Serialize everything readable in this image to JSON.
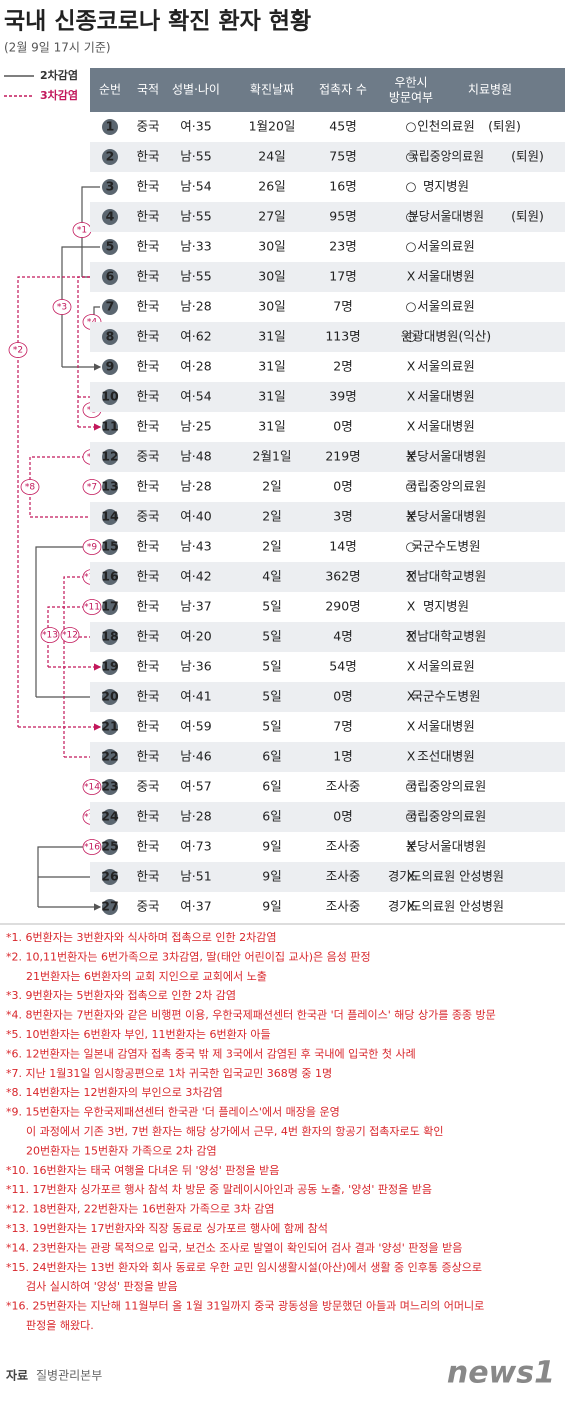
{
  "title": "국내 신종코로나 확진 환자 현황",
  "subtitle": "(2월 9일 17시 기준)",
  "legend": [
    "2차감염",
    "3차감염"
  ],
  "headers": [
    "순번",
    "국적",
    "성별·나이",
    "확진날짜",
    "접촉자 수",
    [
      "우한시",
      "방문여부"
    ],
    "치료병원"
  ],
  "rows": [
    {
      "cells": [
        "1",
        "중국",
        "여·35",
        "1월20일",
        "45명",
        "○",
        "인천의료원"
      ],
      "note": "(퇴원)"
    },
    {
      "cells": [
        "2",
        "한국",
        "남·55",
        "24일",
        "75명",
        "○",
        "국립중앙의료원"
      ],
      "note": "(퇴원)"
    },
    {
      "cells": [
        "3",
        "한국",
        "남·54",
        "26일",
        "16명",
        "○",
        "명지병원"
      ]
    },
    {
      "cells": [
        "4",
        "한국",
        "남·55",
        "27일",
        "95명",
        "○",
        "분당서울대병원"
      ],
      "note": "(퇴원)"
    },
    {
      "cells": [
        "5",
        "한국",
        "남·33",
        "30일",
        "23명",
        "○",
        "서울의료원"
      ]
    },
    {
      "cells": [
        "6",
        "한국",
        "남·55",
        "30일",
        "17명",
        "X",
        "서울대병원"
      ]
    },
    {
      "cells": [
        "7",
        "한국",
        "남·28",
        "30일",
        "7명",
        "○",
        "서울의료원"
      ]
    },
    {
      "cells": [
        "8",
        "한국",
        "여·62",
        "31일",
        "113명",
        "○",
        "원광대병원(익산)"
      ]
    },
    {
      "cells": [
        "9",
        "한국",
        "여·28",
        "31일",
        "2명",
        "X",
        "서울의료원"
      ]
    },
    {
      "cells": [
        "10",
        "한국",
        "여·54",
        "31일",
        "39명",
        "X",
        "서울대병원"
      ]
    },
    {
      "cells": [
        "11",
        "한국",
        "남·25",
        "31일",
        "0명",
        "X",
        "서울대병원"
      ]
    },
    {
      "cells": [
        "12",
        "중국",
        "남·48",
        "2월1일",
        "219명",
        "X",
        "분당서울대병원"
      ]
    },
    {
      "cells": [
        "13",
        "한국",
        "남·28",
        "2일",
        "0명",
        "○",
        "국립중앙의료원"
      ]
    },
    {
      "cells": [
        "14",
        "중국",
        "여·40",
        "2일",
        "3명",
        "X",
        "분당서울대병원"
      ]
    },
    {
      "cells": [
        "15",
        "한국",
        "남·43",
        "2일",
        "14명",
        "○",
        "국군수도병원"
      ]
    },
    {
      "cells": [
        "16",
        "한국",
        "여·42",
        "4일",
        "362명",
        "X",
        "전남대학교병원"
      ]
    },
    {
      "cells": [
        "17",
        "한국",
        "남·37",
        "5일",
        "290명",
        "X",
        "명지병원"
      ]
    },
    {
      "cells": [
        "18",
        "한국",
        "여·20",
        "5일",
        "4명",
        "X",
        "전남대학교병원"
      ]
    },
    {
      "cells": [
        "19",
        "한국",
        "남·36",
        "5일",
        "54명",
        "X",
        "서울의료원"
      ]
    },
    {
      "cells": [
        "20",
        "한국",
        "여·41",
        "5일",
        "0명",
        "X",
        "국군수도병원"
      ]
    },
    {
      "cells": [
        "21",
        "한국",
        "여·59",
        "5일",
        "7명",
        "X",
        "서울대병원"
      ]
    },
    {
      "cells": [
        "22",
        "한국",
        "남·46",
        "6일",
        "1명",
        "X",
        "조선대병원"
      ]
    },
    {
      "cells": [
        "23",
        "중국",
        "여·57",
        "6일",
        "조사중",
        "○",
        "국립중앙의료원"
      ]
    },
    {
      "cells": [
        "24",
        "한국",
        "남·28",
        "6일",
        "0명",
        "○",
        "국립중앙의료원"
      ]
    },
    {
      "cells": [
        "25",
        "한국",
        "여·73",
        "9일",
        "조사중",
        "X",
        "분당서울대병원"
      ]
    },
    {
      "cells": [
        "26",
        "한국",
        "남·51",
        "9일",
        "조사중",
        "X",
        "경기도의료원 안성병원"
      ]
    },
    {
      "cells": [
        "27",
        "중국",
        "여·37",
        "9일",
        "조사중",
        "X",
        "경기도의료원 안성병원"
      ]
    }
  ],
  "markers": [
    "*1",
    "*2",
    "*3",
    "*4",
    "*5",
    "*6",
    "*7",
    "*8",
    "*9",
    "*10",
    "*11",
    "*12",
    "*13",
    "*14",
    "*15",
    "*16"
  ],
  "footnotes": [
    [
      "*1. 6번환자는 3번환자와 식사하며 접촉으로 인한 2차감염"
    ],
    [
      "*2. 10,11번환자는 6번가족으로 3차감염, 딸(태안 어린이집 교사)은 음성 판정",
      "21번환자는 6번환자의 교회 지인으로 교회에서 노출"
    ],
    [
      "*3. 9번환자는 5번환자와 접촉으로 인한 2차 감염"
    ],
    [
      "*4. 8번환자는 7번환자와 같은 비행편 이용, 우한국제패션센터 한국관 '더 플레이스' 해당 상가를 종종 방문"
    ],
    [
      "*5. 10번환자는 6번환자 부인, 11번환자는 6번환자 아들"
    ],
    [
      "*6. 12번환자는 일본내 감염자 접촉 중국 밖 제 3국에서 감염된 후 국내에 입국한 첫 사례"
    ],
    [
      "*7. 지난 1월31일 임시항공편으로 1차 귀국한 입국교민 368명 중 1명"
    ],
    [
      "*8. 14번환자는 12번환자의 부인으로 3차감염"
    ],
    [
      "*9. 15번환자는 우한국제패션센터 한국관 '더 플레이스'에서 매장을 운영",
      "이 과정에서 기존 3번, 7번 환자는 해당 상가에서 근무, 4번 환자의 항공기 접촉자로도 확인",
      "20번환자는 15번환자 가족으로 2차 감염"
    ],
    [
      "*10. 16번환자는 태국 여행을 다녀온 뒤 '양성' 판정을 받음"
    ],
    [
      "*11. 17번환자 싱가포르 행사 참석 차 방문 중 말레이시아인과 공동 노출, '양성' 판정을 받음"
    ],
    [
      "*12. 18번환자, 22번환자는 16번환자 가족으로 3차 감염"
    ],
    [
      "*13. 19번환자는 17번환자와 직장 동료로 싱가포르 행사에 함께 참석"
    ],
    [
      "*14. 23번환자는 관광 목적으로 입국, 보건소 조사로 발열이 확인되어 검사 결과 '양성' 판정을 받음"
    ],
    [
      "*15. 24번환자는 13번 환자와 회사 동료로 우한 교민 임시생활시설(아산)에서 생활 중 인후통 증상으로",
      "검사 실시하여 '양성' 판정을 받음"
    ],
    [
      "*16. 25번환자는 지난해 11월부터 올 1월 31일까지 중국 광동성을 방문했던 아들과 며느리의 어머니로",
      "판정을 해왔다."
    ]
  ],
  "source": {
    "label": "자료",
    "text": "질병관리본부"
  },
  "logo": "news1"
}
